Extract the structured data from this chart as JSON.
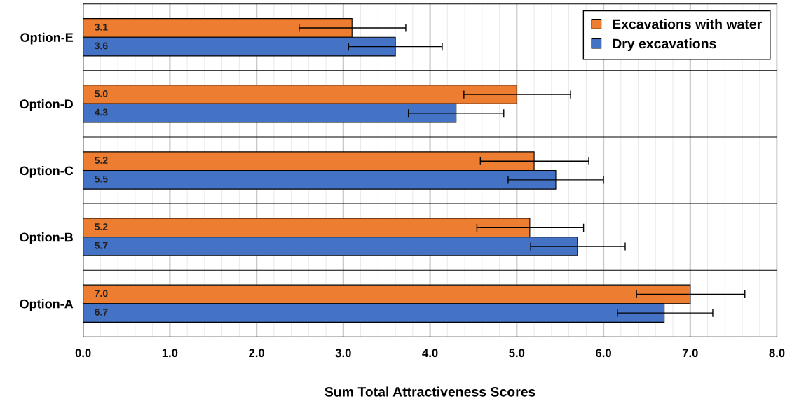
{
  "chart_data": {
    "type": "bar",
    "orientation": "horizontal",
    "xlabel": "Sum Total Attractiveness Scores",
    "categories": [
      "Option-E",
      "Option-D",
      "Option-C",
      "Option-B",
      "Option-A"
    ],
    "series": [
      {
        "name": "Excavations with water",
        "color": "#ed7d31",
        "values": [
          3.1,
          5.0,
          5.2,
          5.15,
          7.0
        ],
        "value_labels": [
          "3.1",
          "5.0",
          "5.2",
          "5.2",
          "7.0"
        ],
        "errors": [
          [
            2.49,
            3.72
          ],
          [
            4.39,
            5.62
          ],
          [
            4.58,
            5.83
          ],
          [
            4.54,
            5.77
          ],
          [
            6.38,
            7.63
          ]
        ]
      },
      {
        "name": "Dry excavations",
        "color": "#4472c4",
        "values": [
          3.6,
          4.3,
          5.45,
          5.7,
          6.7
        ],
        "value_labels": [
          "3.6",
          "4.3",
          "5.5",
          "5.7",
          "6.7"
        ],
        "errors": [
          [
            3.06,
            4.14
          ],
          [
            3.75,
            4.85
          ],
          [
            4.9,
            6.0
          ],
          [
            5.16,
            6.25
          ],
          [
            6.16,
            7.26
          ]
        ]
      }
    ],
    "xlim": [
      0,
      8
    ],
    "xticks": [
      {
        "value": 0,
        "label": "0.0"
      },
      {
        "value": 1,
        "label": "1.0"
      },
      {
        "value": 2,
        "label": "2.0"
      },
      {
        "value": 3,
        "label": "3.0"
      },
      {
        "value": 4,
        "label": "4.0"
      },
      {
        "value": 5,
        "label": "5.0"
      },
      {
        "value": 6,
        "label": "6.0"
      },
      {
        "value": 7,
        "label": "7.0"
      },
      {
        "value": 8,
        "label": "8.0"
      }
    ],
    "grid": "x",
    "legend": "top right"
  }
}
